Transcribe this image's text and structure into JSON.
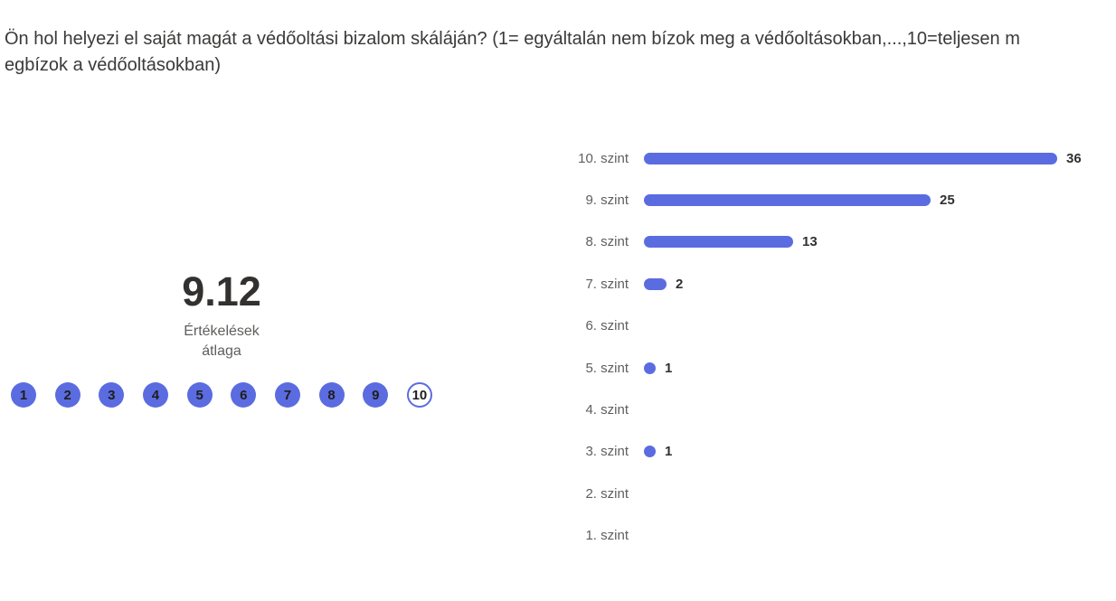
{
  "question": {
    "title": "Ön hol helyezi el saját magát a védőoltási bizalom skáláján? (1= egyáltalán nem bízok meg a védőoltásokban,...,10=teljesen megbízok a védőoltásokban)"
  },
  "summary": {
    "average": "9.12",
    "average_caption": "Értékelések átlaga",
    "scale_labels": [
      "1",
      "2",
      "3",
      "4",
      "5",
      "6",
      "7",
      "8",
      "9",
      "10"
    ],
    "filled_count": 9
  },
  "chart_data": {
    "type": "bar",
    "orientation": "horizontal",
    "title": "",
    "xlabel": "",
    "ylabel": "",
    "categories": [
      "10. szint",
      "9. szint",
      "8. szint",
      "7. szint",
      "6. szint",
      "5. szint",
      "4. szint",
      "3. szint",
      "2. szint",
      "1. szint"
    ],
    "values": [
      36,
      25,
      13,
      2,
      0,
      1,
      0,
      1,
      0,
      0
    ],
    "xlim": [
      0,
      36
    ],
    "grid": false,
    "legend": false,
    "value_labels_shown": true,
    "zero_value_rows_show_no_bar": true
  },
  "colors": {
    "accent_blue": "#5b6ce0",
    "title_text": "#3b3a39",
    "primary_text": "#323130",
    "secondary_text": "#605e5c",
    "background": "#ffffff"
  }
}
